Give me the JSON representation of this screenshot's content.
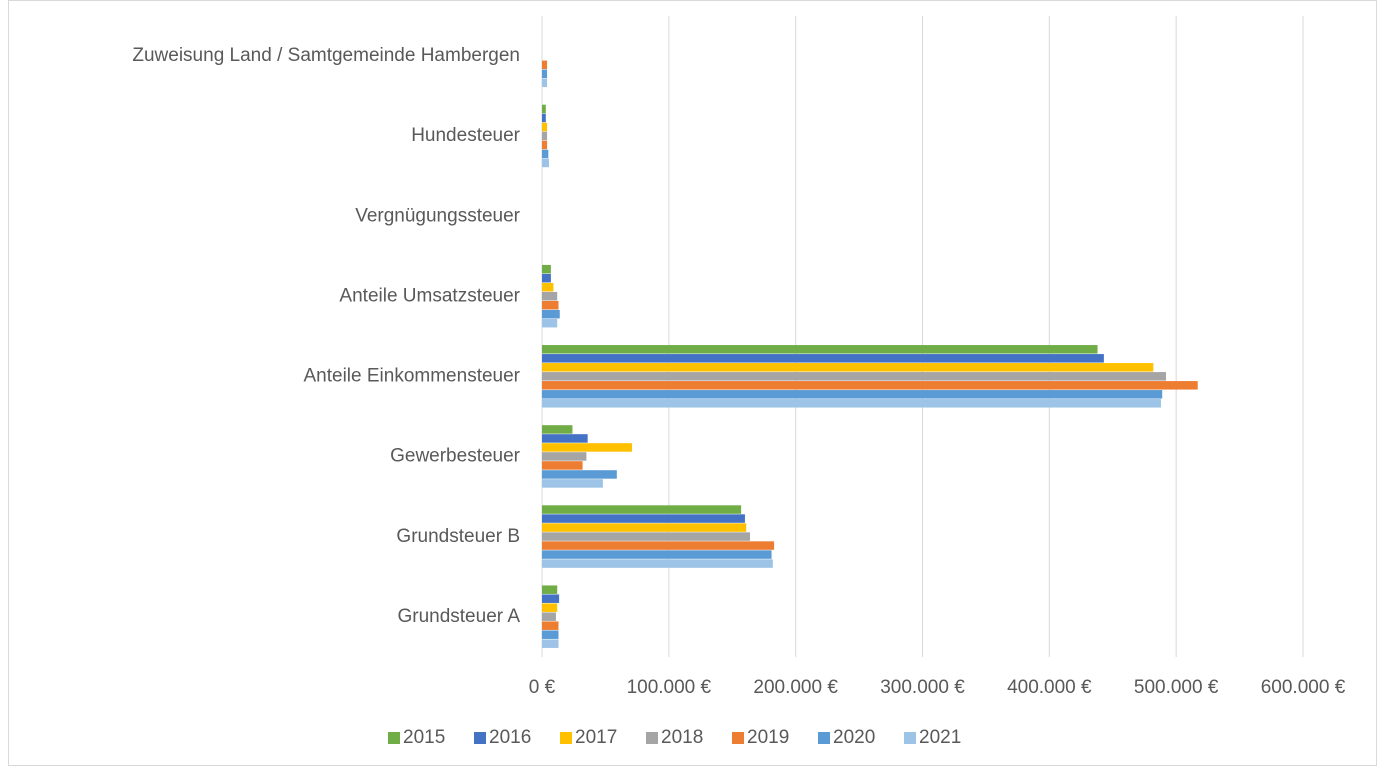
{
  "chart_data": {
    "type": "bar",
    "orientation": "horizontal",
    "categories": [
      "Grundsteuer A",
      "Grundsteuer B",
      "Gewerbesteuer",
      "Anteile Einkommensteuer",
      "Anteile Umsatzsteuer",
      "Vergnügungssteuer",
      "Hundesteuer",
      "Zuweisung  Land / Samtgemeinde Hambergen"
    ],
    "series": [
      {
        "name": "2015",
        "color": "#70ad47",
        "values": [
          12000,
          157000,
          24000,
          438000,
          7000,
          0,
          3000,
          0
        ]
      },
      {
        "name": "2016",
        "color": "#4472c4",
        "values": [
          13500,
          160000,
          36000,
          443000,
          7000,
          0,
          3000,
          0
        ]
      },
      {
        "name": "2017",
        "color": "#ffc000",
        "values": [
          12000,
          161000,
          71000,
          482000,
          9000,
          0,
          4000,
          0
        ]
      },
      {
        "name": "2018",
        "color": "#a5a5a5",
        "values": [
          11000,
          164000,
          35000,
          492000,
          12000,
          0,
          4000,
          0
        ]
      },
      {
        "name": "2019",
        "color": "#ed7d31",
        "values": [
          13000,
          183000,
          32000,
          517000,
          13000,
          0,
          4000,
          4000
        ]
      },
      {
        "name": "2020",
        "color": "#5b9bd5",
        "values": [
          13000,
          181000,
          59000,
          489000,
          14000,
          0,
          5000,
          4000
        ]
      },
      {
        "name": "2021",
        "color": "#9dc3e6",
        "values": [
          13000,
          182000,
          48000,
          488000,
          12000,
          0,
          5500,
          4000
        ]
      }
    ],
    "xlim": [
      0,
      600000
    ],
    "xticks": [
      {
        "value": 0,
        "label": "0 €"
      },
      {
        "value": 100000,
        "label": "100.000 €"
      },
      {
        "value": 200000,
        "label": "200.000 €"
      },
      {
        "value": 300000,
        "label": "300.000 €"
      },
      {
        "value": 400000,
        "label": "400.000 €"
      },
      {
        "value": 500000,
        "label": "500.000 €"
      },
      {
        "value": 600000,
        "label": "600.000 €"
      }
    ],
    "grid": true,
    "legend": "bottom"
  }
}
